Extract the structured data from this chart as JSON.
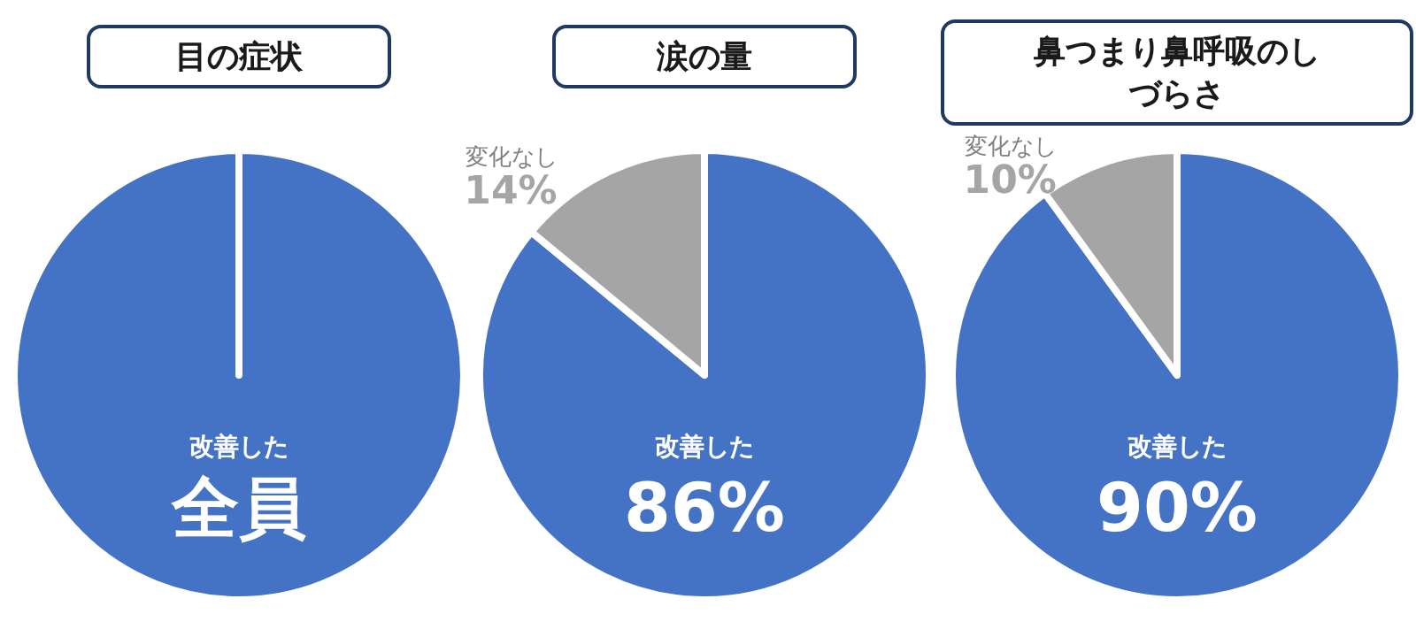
{
  "chart_data": [
    {
      "type": "pie",
      "title": "目の症状",
      "categories": [
        "改善した"
      ],
      "values": [
        100
      ],
      "colors": [
        "#4472c4"
      ],
      "value_labels": [
        "全員"
      ]
    },
    {
      "type": "pie",
      "title": "涙の量",
      "categories": [
        "改善した",
        "変化なし"
      ],
      "values": [
        86,
        14
      ],
      "colors": [
        "#4472c4",
        "#a5a5a5"
      ],
      "value_labels": [
        "86%",
        "14%"
      ]
    },
    {
      "type": "pie",
      "title": "鼻つまり鼻呼吸のしづらさ",
      "categories": [
        "改善した",
        "変化なし"
      ],
      "values": [
        90,
        10
      ],
      "colors": [
        "#4472c4",
        "#a5a5a5"
      ],
      "value_labels": [
        "90%",
        "10%"
      ]
    }
  ]
}
